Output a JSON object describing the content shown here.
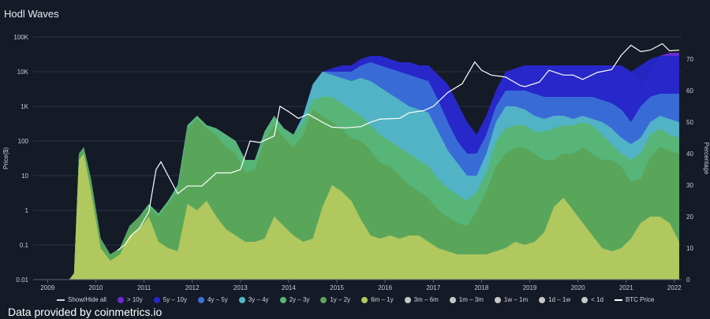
{
  "title": "Hodl Waves",
  "credit": "Data provided by coinmetrics.io",
  "chart_data": {
    "type": "area",
    "title": "Hodl Waves",
    "ylabel_left": "Price($)",
    "ylabel_right": "Percentage",
    "x_ticks": [
      "2009",
      "2010",
      "2011",
      "2012",
      "2013",
      "2014",
      "2015",
      "2016",
      "2017",
      "2018",
      "2019",
      "2020",
      "2021",
      "2022"
    ],
    "y_left_ticks": [
      "0.01",
      "0.1",
      "1",
      "10",
      "100",
      "1K",
      "10K",
      "100K"
    ],
    "y_left_range": [
      0.01,
      100000
    ],
    "y_right_ticks": [
      "0",
      "10",
      "20",
      "30",
      "40",
      "50",
      "60",
      "70"
    ],
    "y_right_range": [
      0,
      77
    ],
    "x": [
      2009.55,
      2009.65,
      2009.75,
      2009.85,
      2010.0,
      2010.2,
      2010.4,
      2010.6,
      2010.8,
      2011.0,
      2011.2,
      2011.4,
      2011.6,
      2011.8,
      2012.0,
      2012.2,
      2012.4,
      2012.6,
      2012.8,
      2013.0,
      2013.2,
      2013.4,
      2013.6,
      2013.8,
      2014.0,
      2014.2,
      2014.4,
      2014.6,
      2014.8,
      2015.0,
      2015.2,
      2015.4,
      2015.6,
      2015.8,
      2016.0,
      2016.2,
      2016.4,
      2016.6,
      2016.8,
      2017.0,
      2017.2,
      2017.4,
      2017.6,
      2017.8,
      2018.0,
      2018.2,
      2018.4,
      2018.6,
      2018.8,
      2019.0,
      2019.2,
      2019.4,
      2019.6,
      2019.8,
      2020.0,
      2020.2,
      2020.4,
      2020.6,
      2020.8,
      2021.0,
      2021.2,
      2021.4,
      2021.6,
      2021.8,
      2022.0,
      2022.2
    ],
    "series": [
      {
        "name": "6m - 1y",
        "color": "#b5c95e",
        "values": [
          0,
          2,
          38,
          40,
          28,
          10,
          6,
          8,
          14,
          16,
          20,
          12,
          10,
          9,
          24,
          22,
          25,
          20,
          16,
          14,
          12,
          12,
          13,
          20,
          17,
          14,
          12,
          13,
          23,
          30,
          28,
          25,
          19,
          14,
          13,
          14,
          13,
          14,
          14,
          12,
          10,
          9,
          8,
          8,
          8,
          8,
          9,
          10,
          12,
          11,
          12,
          15,
          23,
          26,
          22,
          18,
          14,
          10,
          9,
          10,
          13,
          18,
          20,
          20,
          18,
          12
        ]
      },
      {
        "name": "1y - 2y",
        "color": "#5aa55a",
        "values": [
          0,
          2,
          40,
          42,
          32,
          13,
          8,
          10,
          17,
          20,
          23,
          20,
          24,
          28,
          48,
          51,
          48,
          46,
          42,
          40,
          34,
          35,
          44,
          49,
          45,
          42,
          46,
          54,
          52,
          50,
          48,
          45,
          44,
          41,
          37,
          36,
          33,
          30,
          28,
          26,
          22,
          20,
          18,
          17,
          22,
          28,
          36,
          40,
          42,
          42,
          40,
          38,
          38,
          40,
          40,
          42,
          40,
          38,
          38,
          36,
          31,
          32,
          39,
          42,
          41,
          40
        ]
      },
      {
        "name": "2y - 3y",
        "color": "#57b574",
        "values": [
          0,
          2,
          40,
          42,
          32,
          13,
          8,
          10,
          17,
          20,
          24,
          21,
          25,
          30,
          49,
          52,
          49,
          48,
          46,
          44,
          38,
          38,
          47,
          52,
          48,
          46,
          50,
          57,
          58,
          58,
          56,
          54,
          52,
          49,
          46,
          44,
          42,
          40,
          38,
          36,
          32,
          29,
          27,
          25,
          28,
          34,
          44,
          48,
          49,
          49,
          47,
          47,
          48,
          49,
          49,
          50,
          49,
          46,
          43,
          40,
          38,
          40,
          46,
          48,
          46,
          45
        ]
      },
      {
        "name": "3y - 4y",
        "color": "#52b7c4",
        "values": [
          0,
          2,
          40,
          42,
          32,
          13,
          8,
          10,
          17,
          20,
          24,
          21,
          25,
          30,
          49,
          52,
          49,
          48,
          46,
          44,
          38,
          38,
          47,
          52,
          48,
          46,
          52,
          62,
          66,
          65,
          64,
          63,
          64,
          63,
          61,
          59,
          57,
          55,
          54,
          53,
          47,
          41,
          37,
          33,
          33,
          40,
          50,
          55,
          55,
          54,
          52,
          51,
          52,
          52,
          51,
          52,
          51,
          50,
          48,
          45,
          43,
          45,
          50,
          52,
          51,
          50
        ]
      },
      {
        "name": "4y - 5y",
        "color": "#3a6fd6",
        "values": [
          0,
          2,
          40,
          42,
          32,
          13,
          8,
          10,
          17,
          20,
          24,
          21,
          25,
          30,
          49,
          52,
          49,
          48,
          46,
          44,
          38,
          38,
          47,
          52,
          48,
          46,
          52,
          62,
          66,
          66,
          66,
          66,
          68,
          69,
          68,
          67,
          66,
          65,
          64,
          63,
          57,
          50,
          44,
          40,
          40,
          46,
          55,
          60,
          60,
          60,
          59,
          58,
          58,
          58,
          58,
          58,
          58,
          57,
          56,
          54,
          50,
          55,
          58,
          59,
          59,
          59
        ]
      },
      {
        "name": "5y - 10y",
        "color": "#2427c9",
        "values": [
          0,
          2,
          40,
          42,
          32,
          13,
          8,
          10,
          17,
          20,
          24,
          21,
          25,
          30,
          49,
          52,
          49,
          48,
          46,
          44,
          38,
          38,
          47,
          52,
          48,
          46,
          52,
          62,
          66,
          67,
          68,
          68,
          70,
          71,
          71,
          70,
          69,
          69,
          68,
          68,
          65,
          62,
          56,
          50,
          46,
          52,
          60,
          66,
          67,
          68,
          68,
          68,
          68,
          68,
          68,
          68,
          68,
          68,
          68,
          68,
          66,
          68,
          70,
          71,
          71,
          71
        ]
      },
      {
        "name": "> 10y",
        "color": "#6e2bd6",
        "values": [
          0,
          2,
          40,
          42,
          32,
          13,
          8,
          10,
          17,
          20,
          24,
          21,
          25,
          30,
          49,
          52,
          49,
          48,
          46,
          44,
          38,
          38,
          47,
          52,
          48,
          46,
          52,
          62,
          66,
          67,
          68,
          68,
          70,
          71,
          71,
          70,
          69,
          69,
          68,
          68,
          65,
          62,
          56,
          50,
          46,
          52,
          60,
          66,
          67,
          68,
          68,
          68,
          68,
          68,
          68,
          68,
          68,
          68,
          68,
          68,
          66,
          62,
          66,
          71,
          72,
          72
        ]
      }
    ],
    "price_series": {
      "name": "BTC Price",
      "color": "#ffffff",
      "x": [
        2010.55,
        2010.7,
        2010.85,
        2011.0,
        2011.2,
        2011.35,
        2011.45,
        2011.6,
        2011.8,
        2012.0,
        2012.3,
        2012.6,
        2012.9,
        2013.1,
        2013.3,
        2013.5,
        2013.8,
        2013.92,
        2014.1,
        2014.3,
        2014.5,
        2014.8,
        2015.0,
        2015.3,
        2015.6,
        2015.8,
        2016.0,
        2016.4,
        2016.6,
        2016.9,
        2017.1,
        2017.4,
        2017.7,
        2017.96,
        2018.1,
        2018.3,
        2018.6,
        2018.9,
        2019.0,
        2019.3,
        2019.5,
        2019.8,
        2020.0,
        2020.2,
        2020.5,
        2020.8,
        2021.0,
        2021.2,
        2021.4,
        2021.6,
        2021.85,
        2022.0,
        2022.2
      ],
      "values": [
        0.07,
        0.1,
        0.2,
        0.3,
        0.9,
        15,
        25,
        10,
        3,
        5,
        5,
        12,
        12,
        15,
        100,
        90,
        140,
        1000,
        700,
        450,
        600,
        350,
        250,
        240,
        260,
        350,
        430,
        450,
        650,
        750,
        1000,
        2500,
        4500,
        19000,
        11000,
        8000,
        7000,
        4000,
        3700,
        5000,
        11000,
        8000,
        8000,
        6000,
        9500,
        11500,
        30000,
        58000,
        38000,
        42000,
        64000,
        40000,
        42000
      ]
    }
  },
  "legend": {
    "show_hide_all": "Show/Hide all",
    "items": [
      {
        "label": "> 10y",
        "color": "#6e2bd6"
      },
      {
        "label": "5y – 10y",
        "color": "#2427c9"
      },
      {
        "label": "4y – 5y",
        "color": "#3a6fd6"
      },
      {
        "label": "3y – 4y",
        "color": "#52b7c4"
      },
      {
        "label": "2y – 3y",
        "color": "#57b574"
      },
      {
        "label": "1y – 2y",
        "color": "#5aa55a"
      },
      {
        "label": "6m – 1y",
        "color": "#b5c95e"
      },
      {
        "label": "3m – 6m",
        "color": "#c8c8c8"
      },
      {
        "label": "1m – 3m",
        "color": "#c8c8c8"
      },
      {
        "label": "1w – 1m",
        "color": "#c8c8c8"
      },
      {
        "label": "1d – 1w",
        "color": "#c8c8c8"
      },
      {
        "label": "< 1d",
        "color": "#c8c8c8"
      }
    ],
    "btc_price_label": "BTC Price"
  }
}
